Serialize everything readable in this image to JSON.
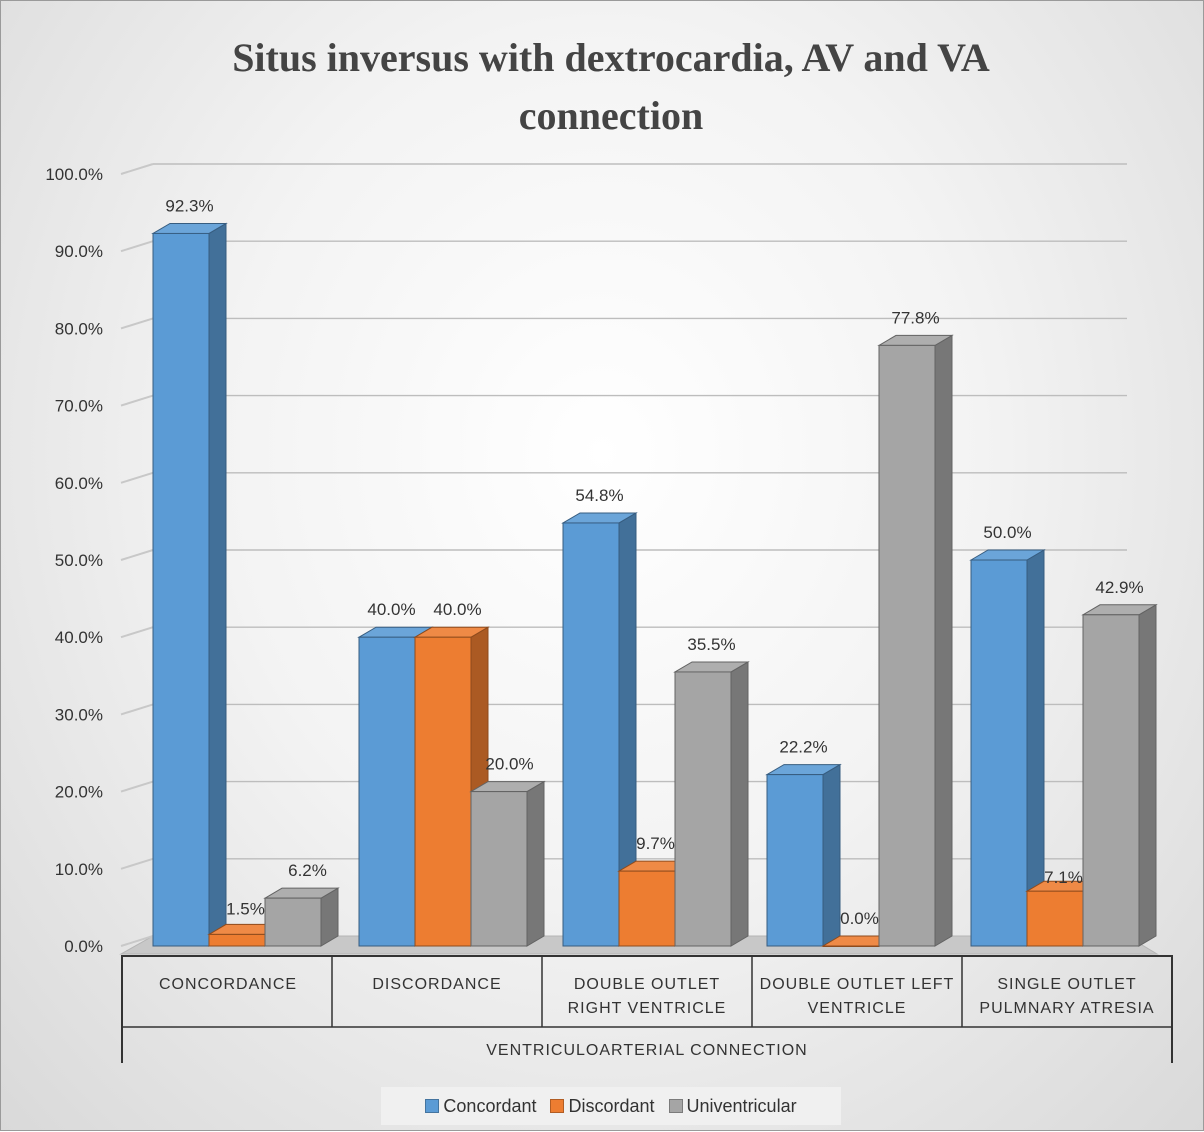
{
  "chart_data": {
    "type": "bar",
    "title": "Situs inversus with dextrocardia, AV and VA connection",
    "xlabel": "VENTRICULOARTERIAL CONNECTION",
    "ylabel": "",
    "ylim": [
      0,
      100
    ],
    "yticks": [
      "0.0%",
      "10.0%",
      "20.0%",
      "30.0%",
      "40.0%",
      "50.0%",
      "60.0%",
      "70.0%",
      "80.0%",
      "90.0%",
      "100.0%"
    ],
    "categories": [
      [
        "CONCORDANCE"
      ],
      [
        "DISCORDANCE"
      ],
      [
        "DOUBLE OUTLET",
        "RIGHT VENTRICLE"
      ],
      [
        "DOUBLE OUTLET LEFT",
        "VENTRICLE"
      ],
      [
        "SINGLE OUTLET",
        "PULMNARY ATRESIA"
      ]
    ],
    "series": [
      {
        "name": "Concordant",
        "values": [
          92.3,
          40.0,
          54.8,
          22.2,
          50.0
        ],
        "labels": [
          "92.3%",
          "40.0%",
          "54.8%",
          "22.2%",
          "50.0%"
        ],
        "color": "#5b9bd5"
      },
      {
        "name": "Discordant",
        "values": [
          1.5,
          40.0,
          9.7,
          0.0,
          7.1
        ],
        "labels": [
          "1.5%",
          "40.0%",
          "9.7%",
          "0.0%",
          "7.1%"
        ],
        "color": "#ed7d31"
      },
      {
        "name": "Univentricular",
        "values": [
          6.2,
          20.0,
          35.5,
          77.8,
          42.9
        ],
        "labels": [
          "6.2%",
          "20.0%",
          "35.5%",
          "77.8%",
          "42.9%"
        ],
        "color": "#a5a5a5"
      }
    ],
    "legend_position": "bottom",
    "grid": true,
    "style": "3d-clustered-column"
  }
}
